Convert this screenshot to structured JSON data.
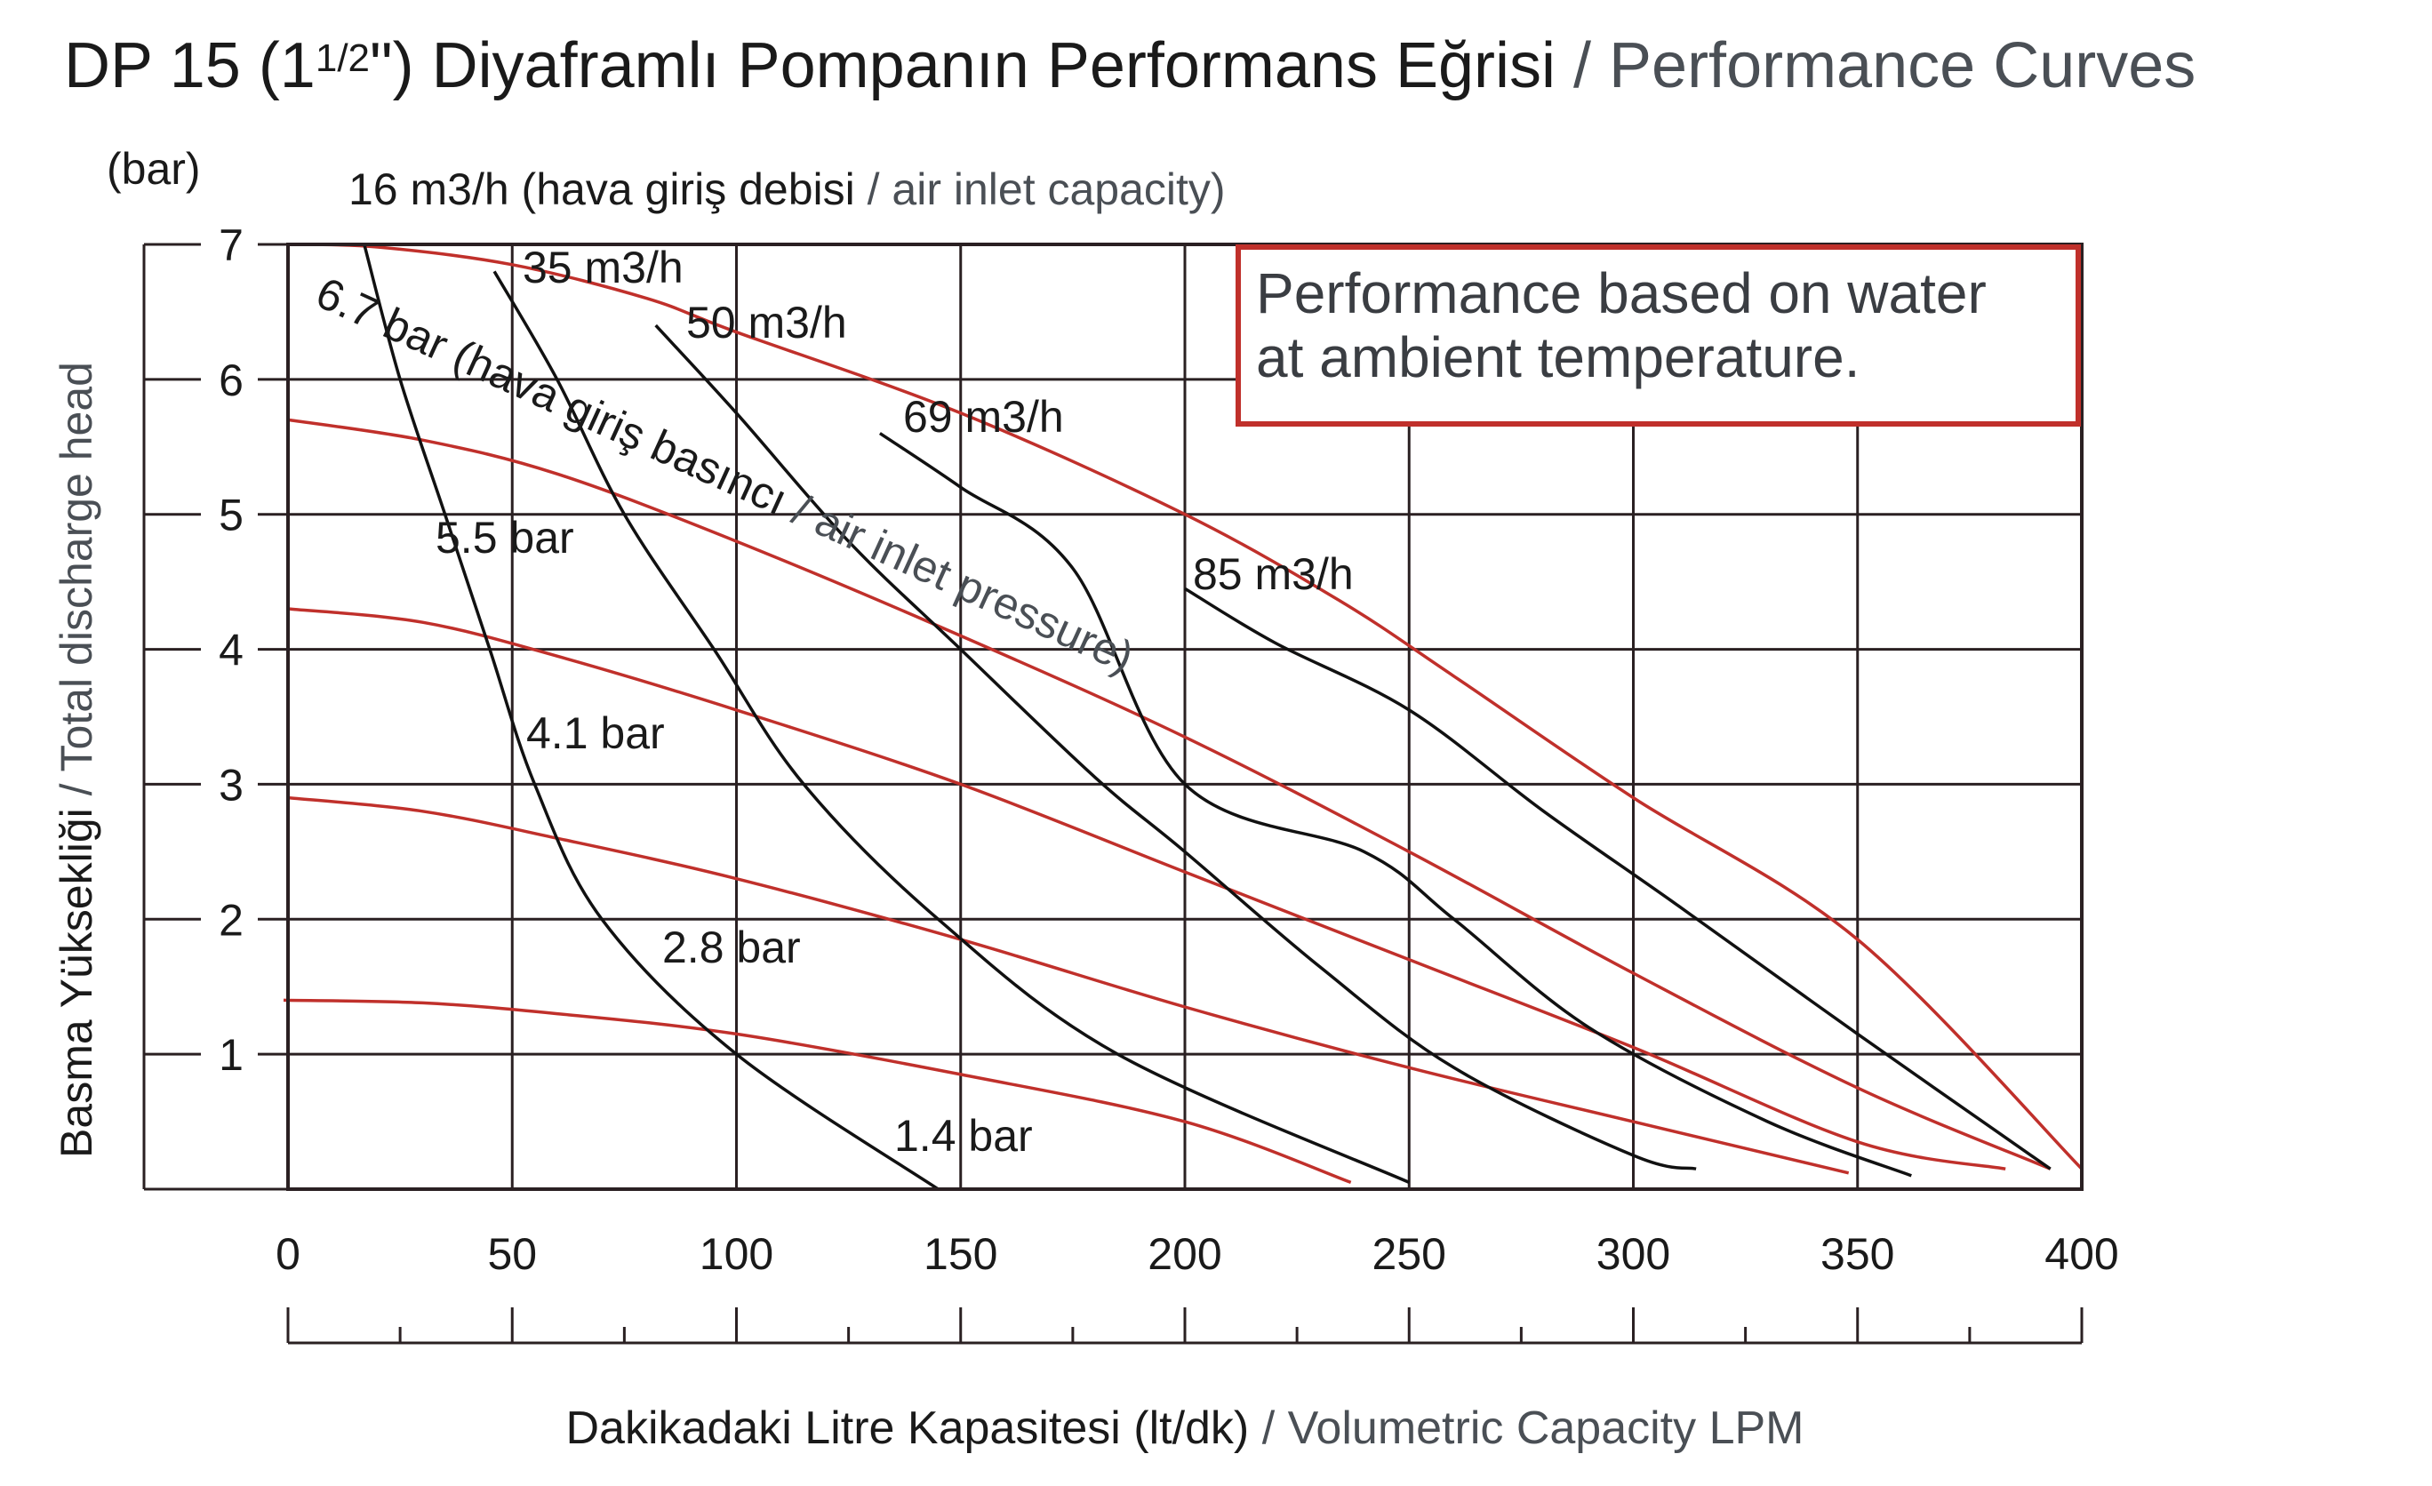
{
  "colors": {
    "red_curve": "#c0302b",
    "black_curve": "#111111",
    "grid": "#2a2022",
    "grey_text": "#4a4f55"
  },
  "title": {
    "main": "DP 15 (1",
    "fraction": "1/2",
    "inch": "\")",
    "main_rest": " Diyaframlı Pompanın Performans Eğrisi",
    "separator": " / ",
    "english": "Performance Curves"
  },
  "y_unit": "(bar)",
  "y_axis_title": {
    "tr": "Basma Yüksekliği",
    "sep": " / ",
    "en": "Total discharge head"
  },
  "x_axis_title": {
    "tr": "Dakikadaki Litre Kapasitesi (lt/dk)",
    "sep": " / ",
    "en": "Volumetric Capacity LPM"
  },
  "note": {
    "line1": "Performance based on water",
    "line2": "at ambient temperature."
  },
  "air_capacity_header": {
    "tr": "16 m3/h (hava giriş debisi",
    "sep": " / ",
    "en": "air inlet capacity)"
  },
  "pressure_header": {
    "tr": "6.7 bar (hava giriş basıncı",
    "sep": " / ",
    "en": "air inlet pressure)"
  },
  "chart_data": {
    "type": "line",
    "title": "DP 15 (1 1/2\") Diyaframlı Pompanın Performans Eğrisi / Performance Curves",
    "xlabel": "Dakikadaki Litre Kapasitesi (lt/dk) / Volumetric Capacity LPM",
    "ylabel": "Basma Yüksekliği / Total discharge head (bar)",
    "xlim": [
      0,
      400
    ],
    "ylim": [
      0,
      7
    ],
    "x_ticks": [
      0,
      50,
      100,
      150,
      200,
      250,
      300,
      350,
      400
    ],
    "x_tick_labels": [
      "0",
      "50",
      "100",
      "150",
      "200",
      "250",
      "300",
      "350",
      "400"
    ],
    "y_ticks": [
      1,
      2,
      3,
      4,
      5,
      6,
      7
    ],
    "y_tick_labels": [
      "1",
      "2",
      "3",
      "4",
      "5",
      "6",
      "7"
    ],
    "grid": true,
    "pressure_series": [
      {
        "name": "6.7 bar",
        "color": "red",
        "points": [
          [
            0,
            7.0
          ],
          [
            20,
            6.98
          ],
          [
            50,
            6.85
          ],
          [
            80,
            6.6
          ],
          [
            100,
            6.35
          ],
          [
            150,
            5.75
          ],
          [
            200,
            5.0
          ],
          [
            235,
            4.35
          ],
          [
            260,
            3.8
          ],
          [
            300,
            2.9
          ],
          [
            350,
            1.85
          ],
          [
            400,
            0.15
          ]
        ]
      },
      {
        "name": "5.5 bar",
        "color": "red",
        "points": [
          [
            0,
            5.7
          ],
          [
            30,
            5.55
          ],
          [
            60,
            5.3
          ],
          [
            100,
            4.8
          ],
          [
            150,
            4.1
          ],
          [
            200,
            3.35
          ],
          [
            250,
            2.5
          ],
          [
            300,
            1.6
          ],
          [
            350,
            0.75
          ],
          [
            393,
            0.15
          ]
        ]
      },
      {
        "name": "4.1 bar",
        "color": "red",
        "points": [
          [
            0,
            4.3
          ],
          [
            30,
            4.2
          ],
          [
            60,
            3.95
          ],
          [
            100,
            3.55
          ],
          [
            150,
            3.0
          ],
          [
            200,
            2.35
          ],
          [
            250,
            1.7
          ],
          [
            300,
            1.05
          ],
          [
            350,
            0.35
          ],
          [
            383,
            0.15
          ]
        ]
      },
      {
        "name": "2.8 bar",
        "color": "red",
        "points": [
          [
            0,
            2.9
          ],
          [
            30,
            2.8
          ],
          [
            60,
            2.6
          ],
          [
            100,
            2.3
          ],
          [
            150,
            1.85
          ],
          [
            200,
            1.35
          ],
          [
            250,
            0.9
          ],
          [
            300,
            0.5
          ],
          [
            348,
            0.12
          ]
        ]
      },
      {
        "name": "1.4 bar",
        "color": "red",
        "points": [
          [
            -1,
            1.4
          ],
          [
            30,
            1.38
          ],
          [
            60,
            1.3
          ],
          [
            100,
            1.15
          ],
          [
            150,
            0.85
          ],
          [
            200,
            0.5
          ],
          [
            237,
            0.05
          ]
        ]
      }
    ],
    "air_capacity_series": [
      {
        "name": "16 m3/h",
        "color": "black",
        "points": [
          [
            17,
            7.0
          ],
          [
            25,
            6.0
          ],
          [
            35,
            5.0
          ],
          [
            45,
            4.0
          ],
          [
            55,
            3.0
          ],
          [
            70,
            2.0
          ],
          [
            100,
            1.0
          ],
          [
            145,
            0.0
          ]
        ]
      },
      {
        "name": "35 m3/h",
        "color": "black",
        "points": [
          [
            46,
            6.8
          ],
          [
            60,
            6.0
          ],
          [
            75,
            5.0
          ],
          [
            95,
            4.0
          ],
          [
            115,
            3.0
          ],
          [
            145,
            2.0
          ],
          [
            185,
            1.0
          ],
          [
            250,
            0.05
          ]
        ]
      },
      {
        "name": "50 m3/h",
        "color": "black",
        "points": [
          [
            82,
            6.4
          ],
          [
            100,
            5.75
          ],
          [
            125,
            4.8
          ],
          [
            150,
            4.0
          ],
          [
            180,
            3.05
          ],
          [
            200,
            2.5
          ],
          [
            230,
            1.65
          ],
          [
            260,
            0.9
          ],
          [
            300,
            0.25
          ],
          [
            314,
            0.15
          ]
        ]
      },
      {
        "name": "69 m3/h",
        "color": "black",
        "points": [
          [
            132,
            5.6
          ],
          [
            150,
            5.2
          ],
          [
            175,
            4.6
          ],
          [
            200,
            3.0
          ],
          [
            240,
            2.5
          ],
          [
            260,
            2.0
          ],
          [
            290,
            1.2
          ],
          [
            330,
            0.5
          ],
          [
            362,
            0.1
          ]
        ]
      },
      {
        "name": "85 m3/h",
        "color": "black",
        "points": [
          [
            200,
            4.45
          ],
          [
            220,
            4.05
          ],
          [
            250,
            3.55
          ],
          [
            280,
            2.8
          ],
          [
            310,
            2.1
          ],
          [
            350,
            1.15
          ],
          [
            393,
            0.15
          ]
        ]
      }
    ],
    "annotations": [
      "6.7 bar (hava giriş basıncı / air inlet pressure)",
      "5.5 bar",
      "4.1 bar",
      "2.8 bar",
      "1.4 bar",
      "16 m3/h (hava giriş debisi / air inlet capacity)",
      "35 m3/h",
      "50 m3/h",
      "69 m3/h",
      "85 m3/h"
    ],
    "labels": {
      "p67": "6.7 bar (hava giriş basıncı / air inlet pressure)",
      "p55": "5.5 bar",
      "p41": "4.1 bar",
      "p28": "2.8 bar",
      "p14": "1.4 bar",
      "c16": "16 m3/h (hava giriş debisi / air inlet capacity)",
      "c35": "35 m3/h",
      "c50": "50 m3/h",
      "c69": "69 m3/h",
      "c85": "85 m3/h"
    }
  }
}
